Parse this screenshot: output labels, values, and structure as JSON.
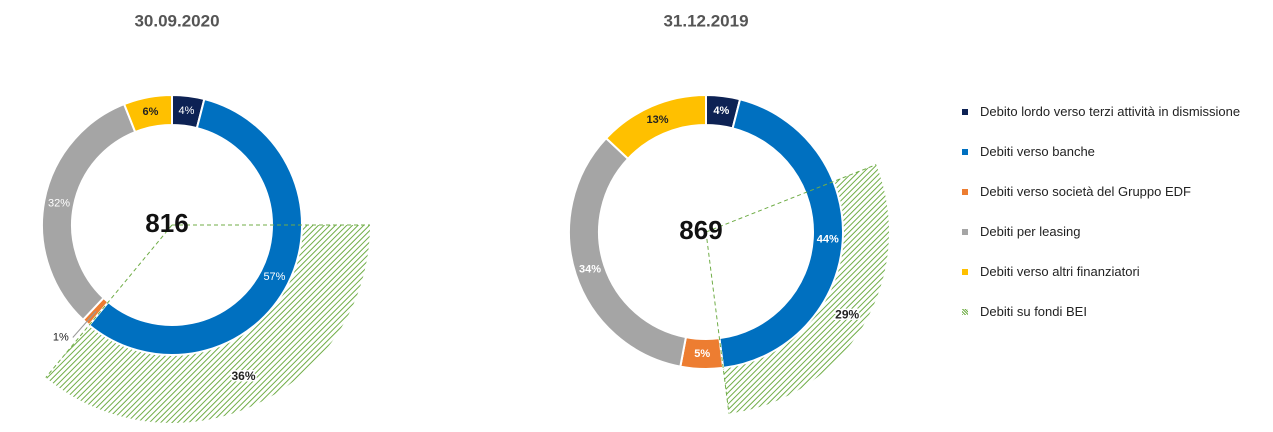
{
  "chart_data": [
    {
      "type": "donut",
      "title": "30.09.2020",
      "total": 816,
      "values": [
        4,
        57,
        1,
        32,
        6
      ],
      "value_labels": [
        "4%",
        "57%",
        "1%",
        "32%",
        "6%"
      ],
      "bei": 36,
      "bei_label": "36%"
    },
    {
      "type": "donut",
      "title": "31.12.2019",
      "total": 869,
      "values": [
        4,
        44,
        5,
        34,
        13
      ],
      "value_labels": [
        "4%",
        "44%",
        "5%",
        "34%",
        "13%"
      ],
      "bei": 29,
      "bei_label": "29%"
    }
  ],
  "legend": [
    {
      "name": "Debito lordo verso terzi attività in dismissione",
      "color": "#0d2254"
    },
    {
      "name": "Debiti verso banche",
      "color": "#0070c0"
    },
    {
      "name": "Debiti verso società del Gruppo EDF",
      "color": "#ed7d31"
    },
    {
      "name": "Debiti per leasing",
      "color": "#a5a5a5"
    },
    {
      "name": "Debiti verso altri finanziatori",
      "color": "#ffc000"
    },
    {
      "name": "Debiti su fondi BEI",
      "color": "#70ad47"
    }
  ]
}
